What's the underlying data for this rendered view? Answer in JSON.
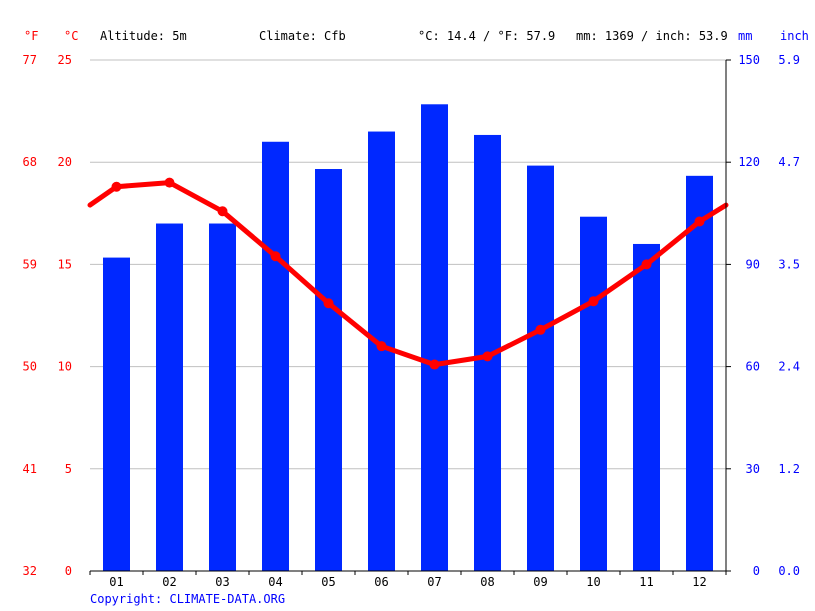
{
  "header": {
    "f_unit": "°F",
    "c_unit": "°C",
    "altitude": "Altitude: 5m",
    "climate": "Climate: Cfb",
    "temp_avg": "°C: 14.4 / °F: 57.9",
    "precip_total": "mm: 1369 / inch: 53.9",
    "mm_unit": "mm",
    "inch_unit": "inch"
  },
  "copyright": "Copyright: CLIMATE-DATA.ORG",
  "colors": {
    "temp_line": "#ff0000",
    "precip_bar": "#0028ff",
    "axis_left": "#ff0000",
    "axis_right": "#0000ff",
    "grid": "#c0c0c0"
  },
  "chart_data": {
    "type": "bar+line",
    "categories": [
      "01",
      "02",
      "03",
      "04",
      "05",
      "06",
      "07",
      "08",
      "09",
      "10",
      "11",
      "12"
    ],
    "series": [
      {
        "type": "bar",
        "axis": "right",
        "unit": "mm",
        "values": [
          92,
          102,
          102,
          126,
          118,
          129,
          137,
          128,
          119,
          104,
          96,
          116
        ]
      },
      {
        "type": "line",
        "axis": "left",
        "unit": "°C",
        "values": [
          18.8,
          19.0,
          17.6,
          15.4,
          13.1,
          11.0,
          10.1,
          10.5,
          11.8,
          13.2,
          15.0,
          17.1
        ]
      }
    ],
    "line_edges": {
      "start": 17.9,
      "end": 17.9
    },
    "left_axis_c": {
      "ticks": [
        0,
        5,
        10,
        15,
        20,
        25
      ],
      "range": [
        0,
        25
      ]
    },
    "left_axis_f": {
      "ticks": [
        "32",
        "41",
        "50",
        "59",
        "68",
        "77"
      ]
    },
    "right_axis_mm": {
      "ticks": [
        0,
        30,
        60,
        90,
        120,
        150
      ],
      "range": [
        0,
        150
      ]
    },
    "right_axis_inch": {
      "ticks": [
        "0.0",
        "1.2",
        "2.4",
        "3.5",
        "4.7",
        "5.9"
      ]
    },
    "grid": true
  }
}
